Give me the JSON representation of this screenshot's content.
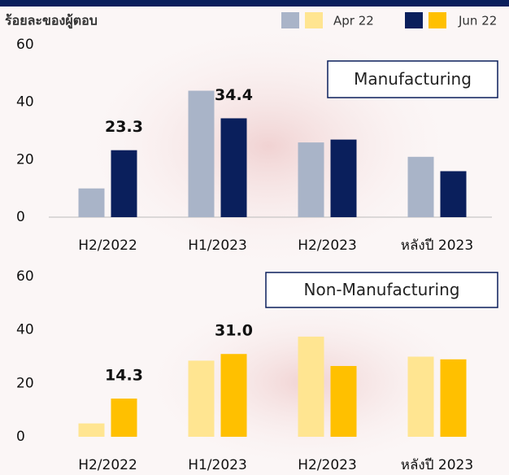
{
  "y_axis_label": "ร้อยละของผู้ตอบ",
  "chart_data": [
    {
      "type": "bar",
      "title": "Manufacturing",
      "categories": [
        "H2/2022",
        "H1/2023",
        "H2/2023",
        "หลังปี 2023"
      ],
      "series": [
        {
          "name": "Apr 22",
          "color": "#a9b4c8",
          "values": [
            10,
            44,
            26,
            21
          ]
        },
        {
          "name": "Jun 22",
          "color": "#0a1f5c",
          "values": [
            23.3,
            34.4,
            27,
            16
          ],
          "value_labels": [
            "23.3",
            "34.4",
            null,
            null
          ]
        }
      ],
      "ylim": [
        0,
        60
      ],
      "yticks": [
        0,
        20,
        40,
        60
      ],
      "baseline": true
    },
    {
      "type": "bar",
      "title": "Non-Manufacturing",
      "categories": [
        "H2/2022",
        "H1/2023",
        "H2/2023",
        "หลังปี 2023"
      ],
      "series": [
        {
          "name": "Apr 22",
          "color": "#ffe591",
          "values": [
            5,
            28.5,
            37.5,
            30
          ]
        },
        {
          "name": "Jun 22",
          "color": "#ffc000",
          "values": [
            14.3,
            31.0,
            26.5,
            29
          ],
          "value_labels": [
            "14.3",
            "31.0",
            null,
            null
          ]
        }
      ],
      "ylim": [
        0,
        60
      ],
      "yticks": [
        0,
        20,
        40,
        60
      ],
      "baseline": false
    }
  ]
}
